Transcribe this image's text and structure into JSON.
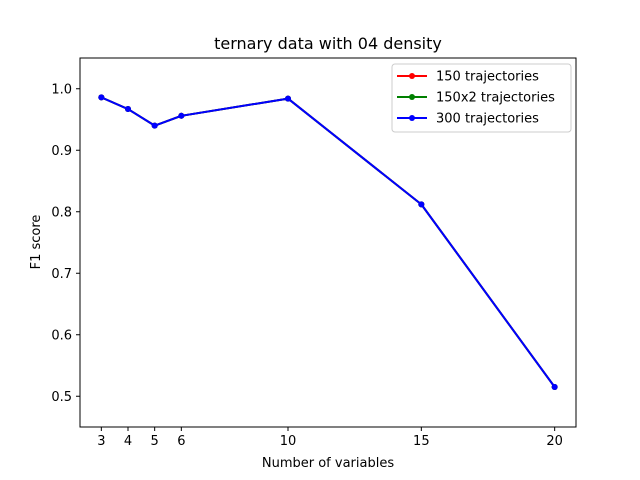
{
  "chart_data": {
    "type": "line",
    "title": "ternary data with 04 density",
    "xlabel": "Number of variables",
    "ylabel": "F1 score",
    "x": [
      3,
      4,
      5,
      6,
      10,
      15,
      20
    ],
    "xticks": [
      "3",
      "4",
      "5",
      "6",
      "10",
      "15",
      "20"
    ],
    "yticks": [
      "0.5",
      "0.6",
      "0.7",
      "0.8",
      "0.9",
      "1.0"
    ],
    "xlim": [
      2.2,
      20.8
    ],
    "ylim": [
      0.45,
      1.05
    ],
    "grid": false,
    "legend_position": "top-right",
    "series": [
      {
        "name": "150 trajectories",
        "color": "#ff0000",
        "values": [
          0.986,
          0.967,
          0.94,
          0.956,
          0.984,
          0.812,
          0.515
        ]
      },
      {
        "name": "150x2 trajectories",
        "color": "#008000",
        "values": [
          0.986,
          0.967,
          0.94,
          0.956,
          0.984,
          0.812,
          0.515
        ]
      },
      {
        "name": "300 trajectories",
        "color": "#0000ff",
        "values": [
          0.986,
          0.967,
          0.94,
          0.956,
          0.984,
          0.812,
          0.515
        ]
      }
    ]
  }
}
